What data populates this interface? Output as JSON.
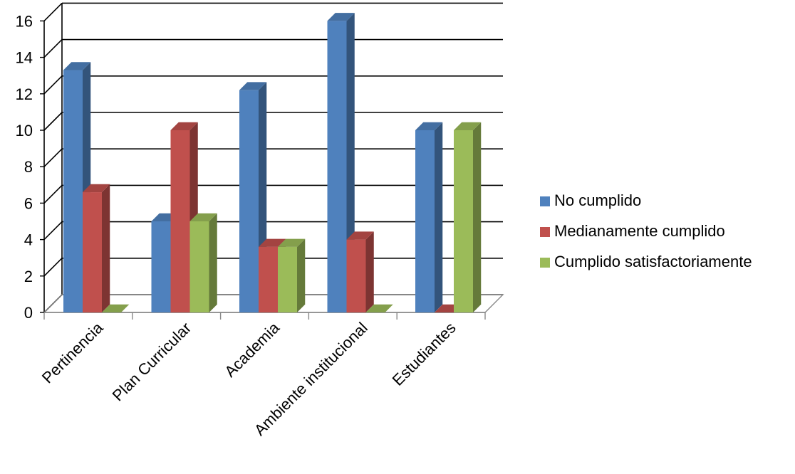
{
  "chart_data": {
    "type": "bar",
    "style": "3d-clustered-column",
    "categories": [
      "Pertinencia",
      "Plan Curricular",
      "Academia",
      "Ambiente institucional",
      "Estudiantes"
    ],
    "series": [
      {
        "name": "No cumplido",
        "color": "#4F81BD",
        "values": [
          13.3,
          5.0,
          12.2,
          16.0,
          10.0
        ]
      },
      {
        "name": "Medianamente cumplido",
        "color": "#C0504D",
        "values": [
          6.6,
          10.0,
          3.6,
          4.0,
          0.0
        ]
      },
      {
        "name": "Cumplido satisfactoriamente",
        "color": "#9BBB59",
        "values": [
          0.0,
          5.0,
          3.6,
          0.0,
          10.0
        ]
      }
    ],
    "y_ticks": [
      0,
      2,
      4,
      6,
      8,
      10,
      12,
      14,
      16
    ],
    "ylim": [
      0,
      16
    ],
    "grid": true,
    "legend_position": "right"
  }
}
